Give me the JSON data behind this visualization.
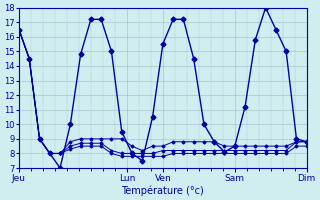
{
  "background_color": "#d0eef0",
  "grid_color": "#a0c8d0",
  "line_color": "#0000aa",
  "xlabel": "Température (°c)",
  "ylim": [
    7,
    18
  ],
  "yticks": [
    7,
    8,
    9,
    10,
    11,
    12,
    13,
    14,
    15,
    16,
    17,
    18
  ],
  "series": [
    [
      16.5,
      14.5,
      9.0,
      8.0,
      7.0,
      10.0,
      14.8,
      17.2,
      17.2,
      15.0,
      9.5,
      8.0,
      7.5,
      10.5,
      15.5,
      17.2,
      17.2,
      14.5,
      10.0,
      8.8,
      8.1,
      8.5,
      11.2,
      15.8,
      18.0,
      16.5,
      15.0,
      9.0,
      8.8
    ],
    [
      16.5,
      14.5,
      9.0,
      8.0,
      8.0,
      8.8,
      9.0,
      9.0,
      9.0,
      9.0,
      9.0,
      8.5,
      8.2,
      8.5,
      8.5,
      8.8,
      8.8,
      8.8,
      8.8,
      8.8,
      8.5,
      8.5,
      8.5,
      8.5,
      8.5,
      8.5,
      8.5,
      8.8,
      8.8
    ],
    [
      16.5,
      14.5,
      9.0,
      8.0,
      8.0,
      8.5,
      8.7,
      8.7,
      8.7,
      8.2,
      8.0,
      8.0,
      8.0,
      8.0,
      8.2,
      8.2,
      8.2,
      8.2,
      8.2,
      8.2,
      8.2,
      8.2,
      8.2,
      8.2,
      8.2,
      8.2,
      8.2,
      8.8,
      8.8
    ],
    [
      16.5,
      14.5,
      9.0,
      8.0,
      8.0,
      8.3,
      8.5,
      8.5,
      8.5,
      8.0,
      7.8,
      7.8,
      7.8,
      7.8,
      7.8,
      8.0,
      8.0,
      8.0,
      8.0,
      8.0,
      8.0,
      8.0,
      8.0,
      8.0,
      8.0,
      8.0,
      8.0,
      8.5,
      8.5
    ]
  ],
  "n_points": 29,
  "x_tick_positions": [
    0,
    9,
    12,
    18,
    24
  ],
  "x_tick_labels": [
    "Jeu",
    "Lun",
    "Ven",
    "Sam",
    "Dim"
  ]
}
